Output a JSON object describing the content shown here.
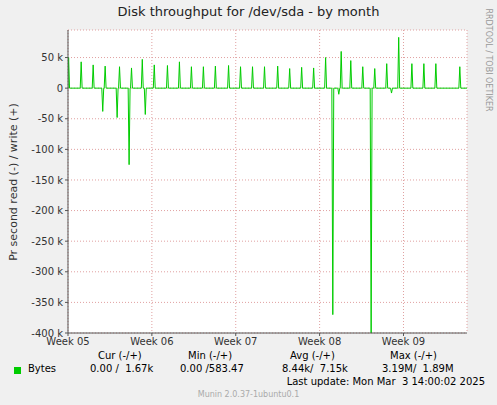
{
  "chart_data": {
    "type": "line",
    "title": "Disk throughput for /dev/sda - by month",
    "y_label": "Pr second read (-) / write (+)",
    "side_text": "RRDTOOL / TOBI OETIKER",
    "footer": "Munin 2.0.37-1ubuntu0.1",
    "last_update": "Last update: Mon Mar  3 14:00:02 2025",
    "legend_table": {
      "headers": [
        "Cur (-/+)",
        "Min (-/+)",
        "Avg (-/+)",
        "Max (-/+)"
      ],
      "row": [
        "0.00 /  1.67k",
        "0.00 /583.47",
        "8.44k/  7.15k",
        "3.19M/  1.89M"
      ]
    },
    "x": [
      0,
      0.05,
      0.13,
      1.02,
      1.1,
      1.18,
      2.02,
      2.1,
      2.18,
      2.82,
      2.9,
      2.98,
      3.02,
      3.1,
      3.18,
      4.02,
      4.1,
      4.18,
      4.22,
      4.3,
      4.38,
      5.02,
      5.1,
      5.18,
      5.22,
      5.3,
      5.38,
      6.12,
      6.2,
      6.28,
      6.37,
      6.45,
      6.53,
      7.12,
      7.2,
      7.28,
      8.22,
      8.3,
      8.38,
      9.22,
      9.3,
      9.38,
      10.22,
      10.3,
      10.38,
      11.22,
      11.3,
      11.38,
      12.22,
      12.3,
      12.38,
      13.32,
      13.4,
      13.48,
      14.32,
      14.4,
      14.48,
      15.32,
      15.4,
      15.48,
      16.32,
      16.4,
      16.48,
      17.42,
      17.5,
      17.58,
      18.42,
      18.5,
      18.58,
      19.42,
      19.5,
      19.58,
      20.42,
      20.5,
      20.58,
      21.42,
      21.5,
      21.58,
      22.02,
      22.1,
      22.18,
      22.52,
      22.6,
      22.68,
      22.72,
      22.8,
      22.88,
      23.52,
      23.6,
      23.68,
      24.52,
      24.6,
      24.68,
      25.22,
      25.3,
      25.38,
      25.52,
      25.6,
      25.68,
      26.52,
      26.6,
      26.68,
      26.92,
      27.0,
      27.08,
      27.52,
      27.6,
      27.68,
      28.62,
      28.7,
      28.78,
      29.62,
      29.7,
      29.78,
      30.62,
      30.7,
      30.78,
      32.62,
      32.7,
      32.78,
      33.3
    ],
    "series": [
      {
        "name": "Bytes",
        "color": "#00cc00",
        "values": [
          0,
          50000,
          0,
          0,
          43000,
          0,
          0,
          38000,
          0,
          0,
          -38000,
          0,
          0,
          36000,
          0,
          0,
          -48000,
          0,
          0,
          35000,
          0,
          0,
          -125000,
          0,
          0,
          33000,
          0,
          0,
          47000,
          0,
          0,
          -43000,
          0,
          0,
          38000,
          0,
          0,
          37000,
          0,
          0,
          43000,
          0,
          0,
          35000,
          0,
          0,
          35000,
          0,
          0,
          36000,
          0,
          0,
          37000,
          0,
          0,
          35000,
          0,
          0,
          35000,
          0,
          0,
          35000,
          0,
          0,
          36000,
          0,
          0,
          32000,
          0,
          0,
          34000,
          0,
          0,
          33000,
          0,
          0,
          50000,
          0,
          0,
          -370000,
          0,
          0,
          -10000,
          0,
          0,
          60000,
          0,
          0,
          45000,
          0,
          0,
          35000,
          0,
          0,
          -400000,
          0,
          0,
          32000,
          0,
          0,
          40000,
          0,
          0,
          -8000,
          0,
          0,
          83000,
          0,
          0,
          40000,
          0,
          0,
          40000,
          0,
          0,
          40000,
          0,
          0,
          35000,
          0,
          0
        ]
      }
    ],
    "xlim": [
      0,
      33.3
    ],
    "xticks": [
      {
        "value": 0,
        "label": "Week 05"
      },
      {
        "value": 7,
        "label": "Week 06"
      },
      {
        "value": 14,
        "label": "Week 07"
      },
      {
        "value": 21,
        "label": "Week 08"
      },
      {
        "value": 28,
        "label": "Week 09"
      }
    ],
    "ylim": [
      -400000,
      95000
    ],
    "yticks": [
      {
        "value": -400000,
        "label": "-400 k"
      },
      {
        "value": -350000,
        "label": "-350 k"
      },
      {
        "value": -300000,
        "label": "-300 k"
      },
      {
        "value": -250000,
        "label": "-250 k"
      },
      {
        "value": -200000,
        "label": "-200 k"
      },
      {
        "value": -150000,
        "label": "-150 k"
      },
      {
        "value": -100000,
        "label": "-100 k"
      },
      {
        "value": -50000,
        "label": "-50 k"
      },
      0,
      {
        "value": 50000,
        "label": "50 k"
      }
    ],
    "grid": true
  }
}
